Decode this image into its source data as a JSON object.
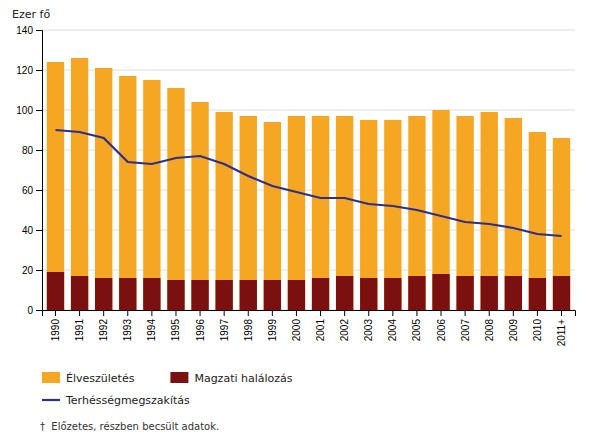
{
  "chart_data": {
    "type": "bar",
    "ylabel": "Ezer fő",
    "annotations": [
      "†  Előzetes, részben becsült adatok."
    ],
    "categories": [
      "1990",
      "1991",
      "1992",
      "1993",
      "1994",
      "1995",
      "1996",
      "1997",
      "1998",
      "1999",
      "2000",
      "2001",
      "2002",
      "2003",
      "2004",
      "2005",
      "2006",
      "2007",
      "2008",
      "2009",
      "2010",
      "2011+"
    ],
    "series": [
      {
        "name": "Élveszületés",
        "type": "bar",
        "color": "#F5A623",
        "values": [
          124,
          126,
          121,
          117,
          115,
          111,
          104,
          99,
          97,
          94,
          97,
          97,
          97,
          95,
          95,
          97,
          100,
          97,
          99,
          96,
          89,
          86
        ]
      },
      {
        "name": "Magzati halálozás",
        "type": "bar",
        "color": "#7B1010",
        "values": [
          19,
          17,
          16,
          16,
          16,
          15,
          15,
          15,
          15,
          15,
          15,
          16,
          17,
          16,
          16,
          17,
          18,
          17,
          17,
          17,
          16,
          17
        ]
      },
      {
        "name": "Terhésségmegszakítás",
        "type": "line",
        "color": "#2E2E8B",
        "values": [
          90,
          89,
          86,
          74,
          73,
          76,
          77,
          73,
          67,
          62,
          59,
          56,
          56,
          53,
          52,
          50,
          47,
          44,
          43,
          41,
          38,
          37
        ]
      }
    ],
    "ylim": [
      0,
      140
    ],
    "yticks": [
      0,
      20,
      40,
      60,
      80,
      100,
      120,
      140
    ],
    "grid": true,
    "legend": "bottom"
  }
}
